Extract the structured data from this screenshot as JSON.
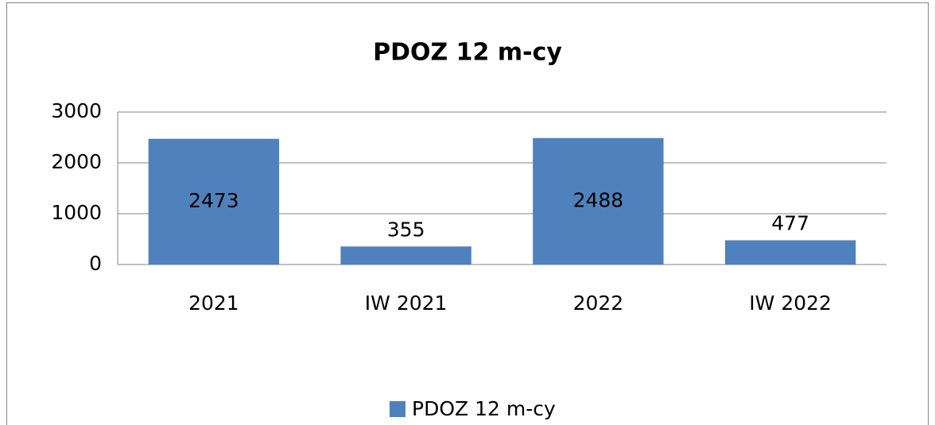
{
  "chart_data": {
    "type": "bar",
    "title": "PDOZ 12 m-cy",
    "categories": [
      "2021",
      "IW 2021",
      "2022",
      "IW 2022"
    ],
    "series": [
      {
        "name": "PDOZ 12 m-cy",
        "color": "#4f81bd",
        "values": [
          2473,
          355,
          2488,
          477
        ]
      }
    ],
    "ylim": [
      0,
      3000
    ],
    "yticks": [
      0,
      1000,
      2000,
      3000
    ],
    "grid": true,
    "legend": "bottom"
  }
}
